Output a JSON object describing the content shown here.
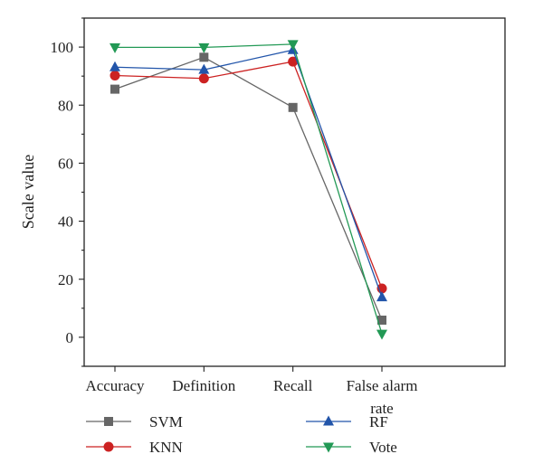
{
  "chart_data": {
    "type": "line",
    "categories": [
      "Accuracy",
      "Definition",
      "Recall",
      "False alarm rate"
    ],
    "ylabel": "Scale value",
    "xlabel": "",
    "ylim": [
      -10,
      110
    ],
    "yticks": [
      0,
      20,
      40,
      60,
      80,
      100
    ],
    "grid": false,
    "legend": "bottom",
    "series": [
      {
        "name": "SVM",
        "values": [
          85.5,
          96.5,
          79.2,
          5.9
        ],
        "color": "#666666",
        "marker": "square"
      },
      {
        "name": "KNN",
        "values": [
          90.2,
          89.2,
          95.0,
          16.8
        ],
        "color": "#cc2222",
        "marker": "circle"
      },
      {
        "name": "RF",
        "values": [
          93.1,
          92.2,
          99.0,
          13.8
        ],
        "color": "#2255aa",
        "marker": "triangle-up"
      },
      {
        "name": "Vote",
        "values": [
          99.9,
          99.9,
          101.0,
          1.2
        ],
        "color": "#229955",
        "marker": "triangle-down"
      }
    ]
  }
}
